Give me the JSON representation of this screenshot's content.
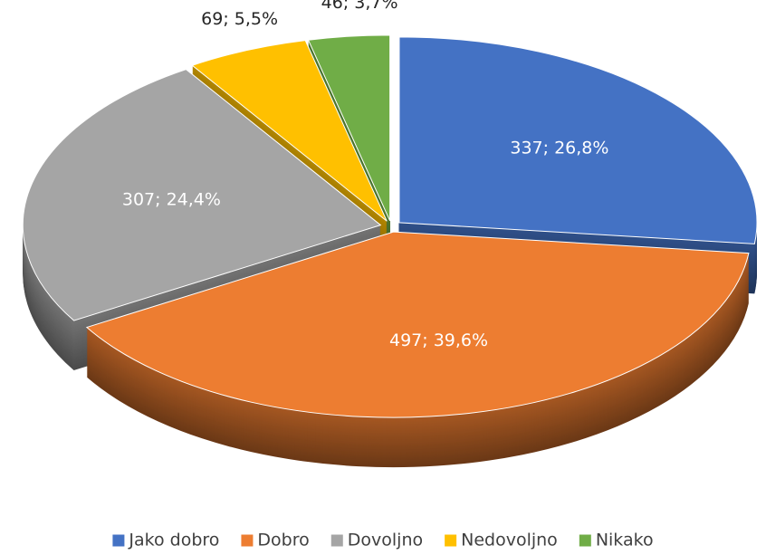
{
  "chart_data": {
    "type": "pie",
    "categories": [
      "Jako dobro",
      "Dobro",
      "Dovoljno",
      "Nedovoljno",
      "Nikako"
    ],
    "values": [
      337,
      497,
      307,
      69,
      46
    ],
    "value_labels": [
      "337; 26,8%",
      "497; 39,6%",
      "307; 24,4%",
      "69; 5,5%",
      "46; 3,7%"
    ],
    "colors": [
      "#4472c4",
      "#ed7d31",
      "#a5a5a5",
      "#ffc000",
      "#70ad47"
    ],
    "legend": "bottom"
  }
}
